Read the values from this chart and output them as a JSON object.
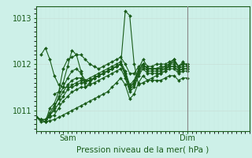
{
  "xlabel": "Pression niveau de la mer( hPa )",
  "bg_color": "#cdf0e8",
  "line_color": "#1a5c1a",
  "grid_color_v": "#c8e8e0",
  "grid_color_h": "#c8e0d8",
  "ylim": [
    1010.55,
    1013.25
  ],
  "yticks": [
    1011,
    1012,
    1013
  ],
  "xlim": [
    0,
    48
  ],
  "sam_x": 7,
  "dim_x": 34,
  "divider_x": 34,
  "divider_color": "#888888",
  "lines": [
    [
      0,
      1010.85,
      1,
      1010.75,
      2,
      1010.75,
      3,
      1011.05,
      4,
      1011.15,
      5,
      1011.4,
      6,
      1011.6,
      7,
      1011.95,
      8,
      1012.3,
      9,
      1012.2,
      10,
      1011.85,
      11,
      1011.5,
      12,
      1011.6,
      13,
      1011.7,
      14,
      1011.75,
      15,
      1011.8,
      16,
      1011.85,
      17,
      1011.9,
      18,
      1011.95,
      19,
      1012.0,
      20,
      1013.15,
      21,
      1013.05,
      22,
      1012.0,
      23,
      1011.55,
      24,
      1011.6,
      25,
      1011.65,
      26,
      1011.7,
      27,
      1011.75,
      28,
      1011.8,
      29,
      1011.85,
      30,
      1012.0,
      31,
      1012.1,
      32,
      1011.95,
      33,
      1012.05,
      34,
      1011.95
    ],
    [
      0,
      1010.85,
      2,
      1010.75,
      3,
      1010.9,
      4,
      1011.05,
      5,
      1011.3,
      6,
      1011.5,
      7,
      1011.7,
      8,
      1011.85,
      9,
      1011.9,
      10,
      1011.8,
      11,
      1011.65,
      12,
      1011.7,
      13,
      1011.75,
      14,
      1011.8,
      15,
      1011.85,
      16,
      1011.9,
      17,
      1011.95,
      18,
      1012.0,
      19,
      1012.05,
      20,
      1011.85,
      21,
      1011.55,
      22,
      1011.65,
      23,
      1011.9,
      24,
      1012.1,
      25,
      1011.95,
      26,
      1011.95,
      27,
      1012.0,
      28,
      1012.0,
      29,
      1012.0,
      30,
      1012.05,
      31,
      1012.1,
      32,
      1011.95,
      33,
      1012.0,
      34,
      1012.0
    ],
    [
      0,
      1010.85,
      1,
      1010.8,
      2,
      1010.8,
      3,
      1010.95,
      4,
      1011.1,
      5,
      1011.25,
      6,
      1011.4,
      7,
      1011.55,
      8,
      1011.65,
      9,
      1011.7,
      10,
      1011.7,
      11,
      1011.65,
      12,
      1011.65,
      13,
      1011.7,
      14,
      1011.75,
      15,
      1011.8,
      16,
      1011.85,
      17,
      1011.9,
      18,
      1011.95,
      19,
      1012.0,
      20,
      1011.8,
      21,
      1011.5,
      22,
      1011.6,
      23,
      1011.85,
      24,
      1012.0,
      25,
      1011.9,
      26,
      1011.9,
      27,
      1011.9,
      28,
      1011.9,
      29,
      1011.95,
      30,
      1012.0,
      31,
      1012.0,
      32,
      1011.9,
      33,
      1011.95,
      34,
      1011.95
    ],
    [
      0,
      1010.85,
      1,
      1010.8,
      2,
      1010.8,
      3,
      1010.9,
      4,
      1011.0,
      5,
      1011.15,
      6,
      1011.3,
      7,
      1011.45,
      8,
      1011.55,
      9,
      1011.6,
      10,
      1011.65,
      11,
      1011.65,
      12,
      1011.65,
      13,
      1011.7,
      14,
      1011.75,
      15,
      1011.8,
      16,
      1011.85,
      17,
      1011.9,
      18,
      1011.95,
      19,
      1012.0,
      20,
      1011.75,
      21,
      1011.45,
      22,
      1011.55,
      23,
      1011.8,
      24,
      1011.95,
      25,
      1011.85,
      26,
      1011.85,
      27,
      1011.85,
      28,
      1011.85,
      29,
      1011.9,
      30,
      1011.95,
      31,
      1011.95,
      32,
      1011.85,
      33,
      1011.9,
      34,
      1011.9
    ],
    [
      0,
      1010.85,
      1,
      1010.8,
      2,
      1010.8,
      3,
      1010.85,
      4,
      1010.9,
      5,
      1011.05,
      6,
      1011.2,
      7,
      1011.3,
      8,
      1011.4,
      9,
      1011.45,
      10,
      1011.5,
      11,
      1011.5,
      12,
      1011.55,
      13,
      1011.6,
      14,
      1011.65,
      15,
      1011.7,
      16,
      1011.75,
      17,
      1011.8,
      18,
      1011.85,
      19,
      1011.9,
      20,
      1011.7,
      21,
      1011.4,
      22,
      1011.5,
      23,
      1011.75,
      24,
      1011.9,
      25,
      1011.8,
      26,
      1011.8,
      27,
      1011.8,
      28,
      1011.8,
      29,
      1011.85,
      30,
      1011.9,
      31,
      1011.9,
      32,
      1011.8,
      33,
      1011.85,
      34,
      1011.85
    ],
    [
      0,
      1010.85,
      1,
      1010.8,
      2,
      1010.75,
      3,
      1010.78,
      4,
      1010.8,
      5,
      1010.85,
      6,
      1010.9,
      7,
      1010.95,
      8,
      1011.0,
      9,
      1011.05,
      10,
      1011.1,
      11,
      1011.15,
      12,
      1011.2,
      13,
      1011.25,
      14,
      1011.3,
      15,
      1011.35,
      16,
      1011.4,
      17,
      1011.5,
      18,
      1011.6,
      19,
      1011.7,
      20,
      1011.55,
      21,
      1011.25,
      22,
      1011.35,
      23,
      1011.6,
      24,
      1011.75,
      25,
      1011.65,
      26,
      1011.65,
      27,
      1011.65,
      28,
      1011.65,
      29,
      1011.7,
      30,
      1011.75,
      31,
      1011.75,
      32,
      1011.65,
      33,
      1011.7,
      34,
      1011.7
    ],
    [
      1,
      1012.2,
      2,
      1012.35,
      3,
      1012.1,
      4,
      1011.75,
      5,
      1011.55,
      6,
      1011.5,
      7,
      1011.5,
      8,
      1011.5,
      9,
      1011.55,
      10,
      1011.6,
      11,
      1011.6,
      12,
      1011.65,
      13,
      1011.7,
      14,
      1011.75,
      15,
      1011.8,
      16,
      1011.85,
      17,
      1011.9,
      18,
      1011.95,
      19,
      1012.0,
      20,
      1011.8,
      21,
      1011.5,
      22,
      1011.6,
      23,
      1011.85,
      24,
      1012.0,
      25,
      1011.9,
      26,
      1011.9,
      27,
      1011.9,
      28,
      1011.9,
      29,
      1011.9,
      30,
      1011.95,
      31,
      1011.95,
      32,
      1011.85,
      33,
      1011.9,
      34,
      1011.9
    ],
    [
      4,
      1011.35,
      5,
      1011.4,
      6,
      1011.9,
      7,
      1012.1,
      8,
      1012.15,
      9,
      1012.2,
      10,
      1012.2,
      11,
      1012.1,
      12,
      1012.0,
      13,
      1011.95,
      14,
      1011.9,
      15,
      1011.95,
      16,
      1012.0,
      17,
      1012.05,
      18,
      1012.1,
      19,
      1012.15,
      20,
      1012.0,
      21,
      1011.8,
      22,
      1011.8,
      23,
      1011.95,
      24,
      1012.0,
      25,
      1011.9,
      26,
      1011.9,
      27,
      1011.9,
      28,
      1011.95,
      29,
      1011.95,
      30,
      1012.0,
      31,
      1012.05,
      32,
      1011.95,
      33,
      1012.0,
      34,
      1012.0
    ]
  ],
  "marker": "D",
  "markersize": 2.0,
  "linewidth": 0.8
}
